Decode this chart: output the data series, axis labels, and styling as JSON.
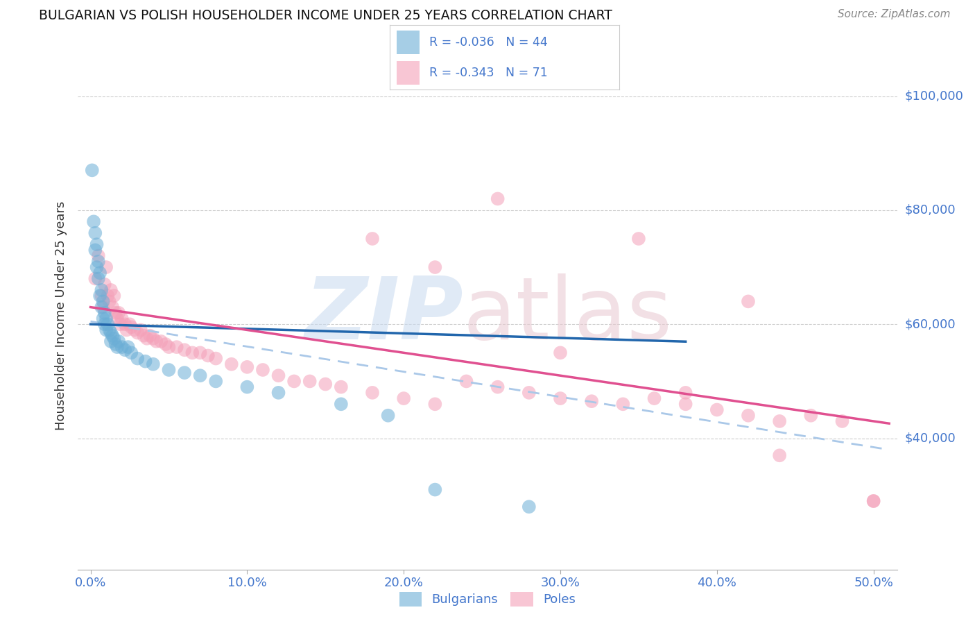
{
  "title": "BULGARIAN VS POLISH HOUSEHOLDER INCOME UNDER 25 YEARS CORRELATION CHART",
  "source": "Source: ZipAtlas.com",
  "ylabel_label": "Householder Income Under 25 years",
  "bg_color": "#ffffff",
  "blue_color": "#6baed6",
  "pink_color": "#f4a0b8",
  "blue_line_color": "#2166ac",
  "pink_line_color": "#e05090",
  "dashed_line_color": "#aac8e8",
  "axis_color": "#4477cc",
  "grid_color": "#cccccc",
  "bulgarians_x": [
    0.001,
    0.002,
    0.003,
    0.003,
    0.004,
    0.004,
    0.005,
    0.005,
    0.006,
    0.006,
    0.007,
    0.007,
    0.008,
    0.008,
    0.009,
    0.009,
    0.01,
    0.01,
    0.011,
    0.012,
    0.013,
    0.013,
    0.014,
    0.015,
    0.016,
    0.017,
    0.018,
    0.02,
    0.022,
    0.024,
    0.026,
    0.03,
    0.035,
    0.04,
    0.05,
    0.06,
    0.07,
    0.08,
    0.1,
    0.12,
    0.16,
    0.19,
    0.22,
    0.28
  ],
  "bulgarians_y": [
    87000,
    78000,
    76000,
    73000,
    74000,
    70000,
    71000,
    68000,
    69000,
    65000,
    66000,
    63000,
    64000,
    61000,
    62000,
    60000,
    61000,
    59000,
    60000,
    59000,
    58500,
    57000,
    58000,
    57500,
    56500,
    56000,
    57000,
    56000,
    55500,
    56000,
    55000,
    54000,
    53500,
    53000,
    52000,
    51500,
    51000,
    50000,
    49000,
    48000,
    46000,
    44000,
    31000,
    28000
  ],
  "poles_x": [
    0.003,
    0.005,
    0.007,
    0.008,
    0.009,
    0.01,
    0.011,
    0.012,
    0.013,
    0.014,
    0.015,
    0.016,
    0.017,
    0.018,
    0.019,
    0.02,
    0.022,
    0.023,
    0.025,
    0.026,
    0.028,
    0.03,
    0.032,
    0.034,
    0.036,
    0.038,
    0.04,
    0.042,
    0.045,
    0.048,
    0.05,
    0.055,
    0.06,
    0.065,
    0.07,
    0.075,
    0.08,
    0.09,
    0.1,
    0.11,
    0.12,
    0.13,
    0.14,
    0.15,
    0.16,
    0.18,
    0.2,
    0.22,
    0.24,
    0.26,
    0.28,
    0.3,
    0.32,
    0.34,
    0.36,
    0.38,
    0.4,
    0.42,
    0.44,
    0.46,
    0.48,
    0.5,
    0.26,
    0.35,
    0.42,
    0.18,
    0.22,
    0.3,
    0.38,
    0.5,
    0.44
  ],
  "poles_y": [
    68000,
    72000,
    65000,
    63000,
    67000,
    70000,
    65000,
    64000,
    66000,
    63000,
    65000,
    62000,
    61000,
    62000,
    60000,
    61000,
    60000,
    59000,
    60000,
    59500,
    59000,
    58500,
    59000,
    58000,
    57500,
    58000,
    57500,
    57000,
    57000,
    56500,
    56000,
    56000,
    55500,
    55000,
    55000,
    54500,
    54000,
    53000,
    52500,
    52000,
    51000,
    50000,
    50000,
    49500,
    49000,
    48000,
    47000,
    46000,
    50000,
    49000,
    48000,
    47000,
    46500,
    46000,
    47000,
    46000,
    45000,
    44000,
    43000,
    44000,
    43000,
    29000,
    82000,
    75000,
    64000,
    75000,
    70000,
    55000,
    48000,
    29000,
    37000
  ],
  "xlim": [
    -0.008,
    0.515
  ],
  "ylim": [
    17000,
    106000
  ],
  "yticks": [
    40000,
    60000,
    80000,
    100000
  ],
  "xticks": [
    0.0,
    0.1,
    0.2,
    0.3,
    0.4,
    0.5
  ]
}
